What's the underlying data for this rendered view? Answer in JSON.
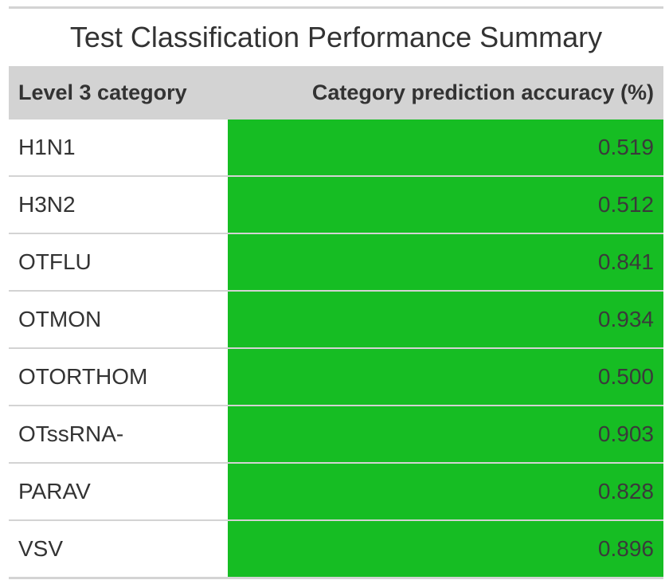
{
  "table": {
    "title": "Test Classification Performance Summary",
    "columns": [
      "Level 3 category",
      "Category prediction accuracy (%)"
    ],
    "highlight_color": "#16bd23",
    "header_bg": "#d3d3d3",
    "rows": [
      {
        "category": "H1N1",
        "accuracy": "0.519"
      },
      {
        "category": "H3N2",
        "accuracy": "0.512"
      },
      {
        "category": "OTFLU",
        "accuracy": "0.841"
      },
      {
        "category": "OTMON",
        "accuracy": "0.934"
      },
      {
        "category": "OTORTHOM",
        "accuracy": "0.500"
      },
      {
        "category": "OTssRNA-",
        "accuracy": "0.903"
      },
      {
        "category": "PARAV",
        "accuracy": "0.828"
      },
      {
        "category": "VSV",
        "accuracy": "0.896"
      }
    ]
  }
}
